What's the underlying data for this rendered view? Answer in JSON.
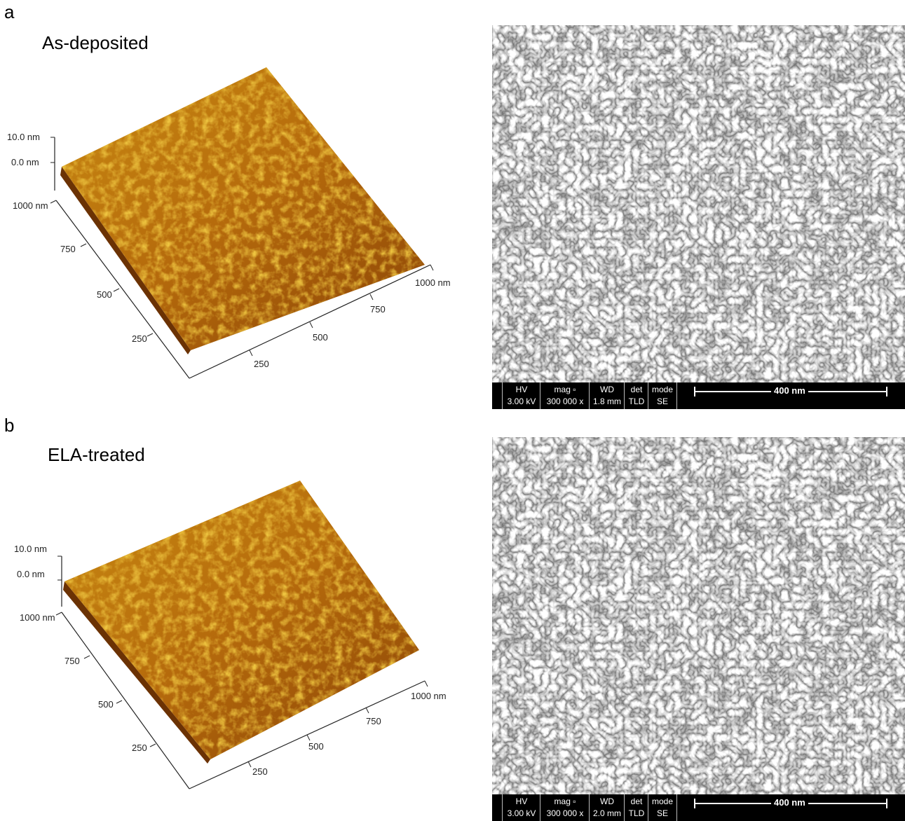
{
  "panels": [
    {
      "letter": "a",
      "title": "As-deposited",
      "afm": {
        "z_top": "10.0 nm",
        "z_zero": "0.0 nm",
        "y_ticks": [
          "1000 nm",
          "750",
          "500",
          "250"
        ],
        "x_ticks": [
          "250",
          "500",
          "750",
          "1000 nm"
        ]
      },
      "sem": {
        "hv_label": "HV",
        "hv_value": "3.00 kV",
        "mag_label": "mag ▫",
        "mag_value": "300 000 x",
        "wd_label": "WD",
        "wd_value": "1.8 mm",
        "det_label": "det",
        "det_value": "TLD",
        "mode_label": "mode",
        "mode_value": "SE",
        "scale_label": "400 nm"
      }
    },
    {
      "letter": "b",
      "title": "ELA-treated",
      "afm": {
        "z_top": "10.0 nm",
        "z_zero": "0.0 nm",
        "y_ticks": [
          "1000 nm",
          "750",
          "500",
          "250"
        ],
        "x_ticks": [
          "250",
          "500",
          "750",
          "1000 nm"
        ]
      },
      "sem": {
        "hv_label": "HV",
        "hv_value": "3.00 kV",
        "mag_label": "mag ▫",
        "mag_value": "300 000 x",
        "wd_label": "WD",
        "wd_value": "2.0 mm",
        "det_label": "det",
        "det_value": "TLD",
        "mode_label": "mode",
        "mode_value": "SE",
        "scale_label": "400 nm"
      }
    }
  ],
  "colors": {
    "afm_dark": "#7a3c05",
    "afm_mid": "#c47a10",
    "afm_light": "#e8c020",
    "sem_gray": "#6a6a6a"
  }
}
